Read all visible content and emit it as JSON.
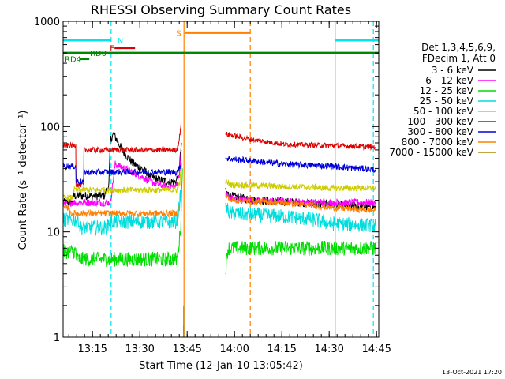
{
  "chart_data": {
    "type": "line",
    "title": "RHESSI Observing Summary Count Rates",
    "xlabel": "Start Time (12-Jan-10 13:05:42)",
    "ylabel": "Count Rate (s⁻¹ detector⁻¹)",
    "yscale": "log",
    "ylim": [
      1,
      1000
    ],
    "xlim_minutes": [
      0,
      100
    ],
    "x_ticks": [
      {
        "t": 9.3,
        "label": "13:15"
      },
      {
        "t": 24.3,
        "label": "13:30"
      },
      {
        "t": 39.3,
        "label": "13:45"
      },
      {
        "t": 54.3,
        "label": "14:00"
      },
      {
        "t": 69.3,
        "label": "14:15"
      },
      {
        "t": 84.3,
        "label": "14:30"
      },
      {
        "t": 99.3,
        "label": "14:45"
      }
    ],
    "y_ticks": [
      {
        "v": 1,
        "label": "1"
      },
      {
        "v": 10,
        "label": "10"
      },
      {
        "v": 100,
        "label": "100"
      },
      {
        "v": 1000,
        "label": "1000"
      }
    ],
    "legend": {
      "header": [
        "Det 1,3,4,5,6,9,",
        "FDecim 1, Att 0"
      ],
      "position": "right",
      "entries": [
        {
          "label": "3 - 6 keV",
          "color": "#000000"
        },
        {
          "label": "6 - 12 keV",
          "color": "#ff00ff"
        },
        {
          "label": "12 - 25 keV",
          "color": "#00dd00"
        },
        {
          "label": "25 - 50 keV",
          "color": "#00dddd"
        },
        {
          "label": "50 - 100 keV",
          "color": "#cccc00"
        },
        {
          "label": "100 - 300 keV",
          "color": "#dd0000"
        },
        {
          "label": "300 - 800 keV",
          "color": "#0000dd"
        },
        {
          "label": "800 - 7000 keV",
          "color": "#ff8000"
        },
        {
          "label": "7000 - 15000 keV",
          "color": "#aa8800"
        }
      ]
    },
    "series": [
      {
        "name": "3 - 6 keV",
        "color": "#000000",
        "noise": 0.04,
        "segments": [
          [
            [
              0,
              19
            ],
            [
              3,
              19
            ],
            [
              3.2,
              22
            ],
            [
              13,
              22
            ],
            [
              14.5,
              28
            ],
            [
              15,
              75
            ],
            [
              16,
              85
            ],
            [
              19,
              58
            ],
            [
              22,
              45
            ],
            [
              26,
              38
            ],
            [
              28,
              33
            ],
            [
              31,
              31
            ],
            [
              34,
              30
            ],
            [
              35.8,
              30
            ],
            [
              36.8,
              40
            ],
            [
              37.5,
              70
            ]
          ],
          [
            [
              51.5,
              24
            ],
            [
              53,
              22
            ],
            [
              60,
              20
            ],
            [
              75,
              19
            ],
            [
              85,
              18
            ],
            [
              99,
              17
            ]
          ]
        ]
      },
      {
        "name": "6 - 12 keV",
        "color": "#ff00ff",
        "noise": 0.035,
        "segments": [
          [
            [
              0,
              19
            ],
            [
              15,
              19
            ],
            [
              16.5,
              44
            ],
            [
              18,
              42
            ],
            [
              22,
              37
            ],
            [
              26,
              32
            ],
            [
              30,
              28
            ],
            [
              33,
              27
            ],
            [
              35.8,
              27
            ],
            [
              36.8,
              35
            ],
            [
              37.5,
              60
            ]
          ],
          [
            [
              51.5,
              23
            ],
            [
              53,
              21
            ],
            [
              60,
              20
            ],
            [
              75,
              19
            ],
            [
              85,
              19
            ],
            [
              99,
              19
            ]
          ]
        ]
      },
      {
        "name": "12 - 25 keV",
        "color": "#00dd00",
        "noise": 0.07,
        "segments": [
          [
            [
              0,
              6.5
            ],
            [
              4,
              6.5
            ],
            [
              4.2,
              5.5
            ],
            [
              36,
              5.5
            ],
            [
              36.8,
              8
            ],
            [
              37.3,
              12
            ],
            [
              37.6,
              25
            ],
            [
              37.8,
              40
            ]
          ],
          [
            [
              51.5,
              4.5
            ],
            [
              52.2,
              7
            ],
            [
              70,
              7
            ],
            [
              99,
              7
            ]
          ]
        ]
      },
      {
        "name": "25 - 50 keV",
        "color": "#00dddd",
        "noise": 0.07,
        "segments": [
          [
            [
              0,
              13
            ],
            [
              5,
              13
            ],
            [
              5.2,
              11
            ],
            [
              14,
              11
            ],
            [
              14.5,
              12.5
            ],
            [
              36,
              12.5
            ],
            [
              36.8,
              18
            ],
            [
              37.5,
              25
            ]
          ],
          [
            [
              51.5,
              17
            ],
            [
              53,
              15
            ],
            [
              70,
              14
            ],
            [
              80,
              13
            ],
            [
              85,
              12
            ],
            [
              99,
              11.5
            ]
          ]
        ]
      },
      {
        "name": "50 - 100 keV",
        "color": "#cccc00",
        "noise": 0.03,
        "segments": [
          [
            [
              0,
              21
            ],
            [
              3,
              21
            ],
            [
              3.2,
              25
            ],
            [
              36,
              25
            ],
            [
              37,
              30
            ],
            [
              37.6,
              45
            ]
          ],
          [
            [
              51.5,
              30
            ],
            [
              53,
              28
            ],
            [
              70,
              27
            ],
            [
              85,
              26
            ],
            [
              99,
              26
            ]
          ]
        ]
      },
      {
        "name": "100 - 300 keV",
        "color": "#dd0000",
        "noise": 0.025,
        "segments": [
          [
            [
              0,
              66
            ],
            [
              4,
              66
            ],
            [
              4.1,
              28
            ],
            [
              6.5,
              28
            ],
            [
              6.6,
              60
            ],
            [
              36,
              60
            ],
            [
              36.8,
              75
            ],
            [
              37.4,
              110
            ]
          ],
          [
            [
              51.5,
              85
            ],
            [
              60,
              75
            ],
            [
              70,
              68
            ],
            [
              85,
              66
            ],
            [
              99,
              64
            ]
          ]
        ]
      },
      {
        "name": "300 - 800 keV",
        "color": "#0000dd",
        "noise": 0.03,
        "segments": [
          [
            [
              0,
              42
            ],
            [
              4,
              42
            ],
            [
              4.1,
              30
            ],
            [
              6.5,
              30
            ],
            [
              6.6,
              37
            ],
            [
              36,
              37
            ],
            [
              36.8,
              40
            ],
            [
              37.4,
              45
            ]
          ],
          [
            [
              51.5,
              50
            ],
            [
              60,
              47
            ],
            [
              70,
              44
            ],
            [
              85,
              42
            ],
            [
              99,
              39
            ]
          ]
        ]
      },
      {
        "name": "800 - 7000 keV",
        "color": "#ff8000",
        "noise": 0.03,
        "segments": [
          [
            [
              0,
              17
            ],
            [
              2,
              17
            ],
            [
              2.2,
              15
            ],
            [
              36,
              15
            ],
            [
              36.8,
              17
            ]
          ],
          [
            [
              51.5,
              22
            ],
            [
              53,
              20
            ],
            [
              70,
              19
            ],
            [
              85,
              17
            ],
            [
              99,
              16
            ]
          ]
        ]
      },
      {
        "name": "7000 - 15000 keV",
        "color": "#aa8800",
        "noise": 0.0,
        "segments": [
          [
            [
              38.2,
              2
            ]
          ],
          [
            [
              38.2,
              1.3
            ]
          ]
        ]
      }
    ],
    "flag_bars": [
      {
        "label": "N",
        "color": "#00e5ee",
        "y_value": 660,
        "spans": [
          [
            0,
            15.2
          ],
          [
            86.2,
            100
          ]
        ],
        "label_at_t": 17.2
      },
      {
        "label": "F",
        "color": "#dd0000",
        "y_value": 560,
        "spans": [
          [
            16.3,
            22.8
          ]
        ],
        "label_at_t": 14.8
      },
      {
        "label": "S",
        "color": "#ff8000",
        "y_value": 780,
        "spans": [
          [
            38.6,
            59.3
          ]
        ],
        "label_at_t": 35.8
      },
      {
        "label": "RD0",
        "color": "#008800",
        "y_value": 500,
        "spans": [
          [
            0,
            100
          ]
        ],
        "label_at_t": 8.5
      },
      {
        "label": "RD4",
        "color": "#008800",
        "y_value": 440,
        "spans": [
          [
            5.5,
            8.3
          ]
        ],
        "label_at_t": 0.5
      }
    ],
    "vertical_markers": [
      {
        "t": 15.2,
        "color": "#00e5ee",
        "style": "dashed"
      },
      {
        "t": 38.3,
        "color": "#ff8000",
        "style": "solid"
      },
      {
        "t": 59.3,
        "color": "#ff8000",
        "style": "dashed"
      },
      {
        "t": 86.2,
        "color": "#00e5ee",
        "style": "solid"
      },
      {
        "t": 98.3,
        "color": "#00e5ee",
        "style": "dashed"
      }
    ],
    "footer_date": "13-Oct-2021 17:20"
  }
}
